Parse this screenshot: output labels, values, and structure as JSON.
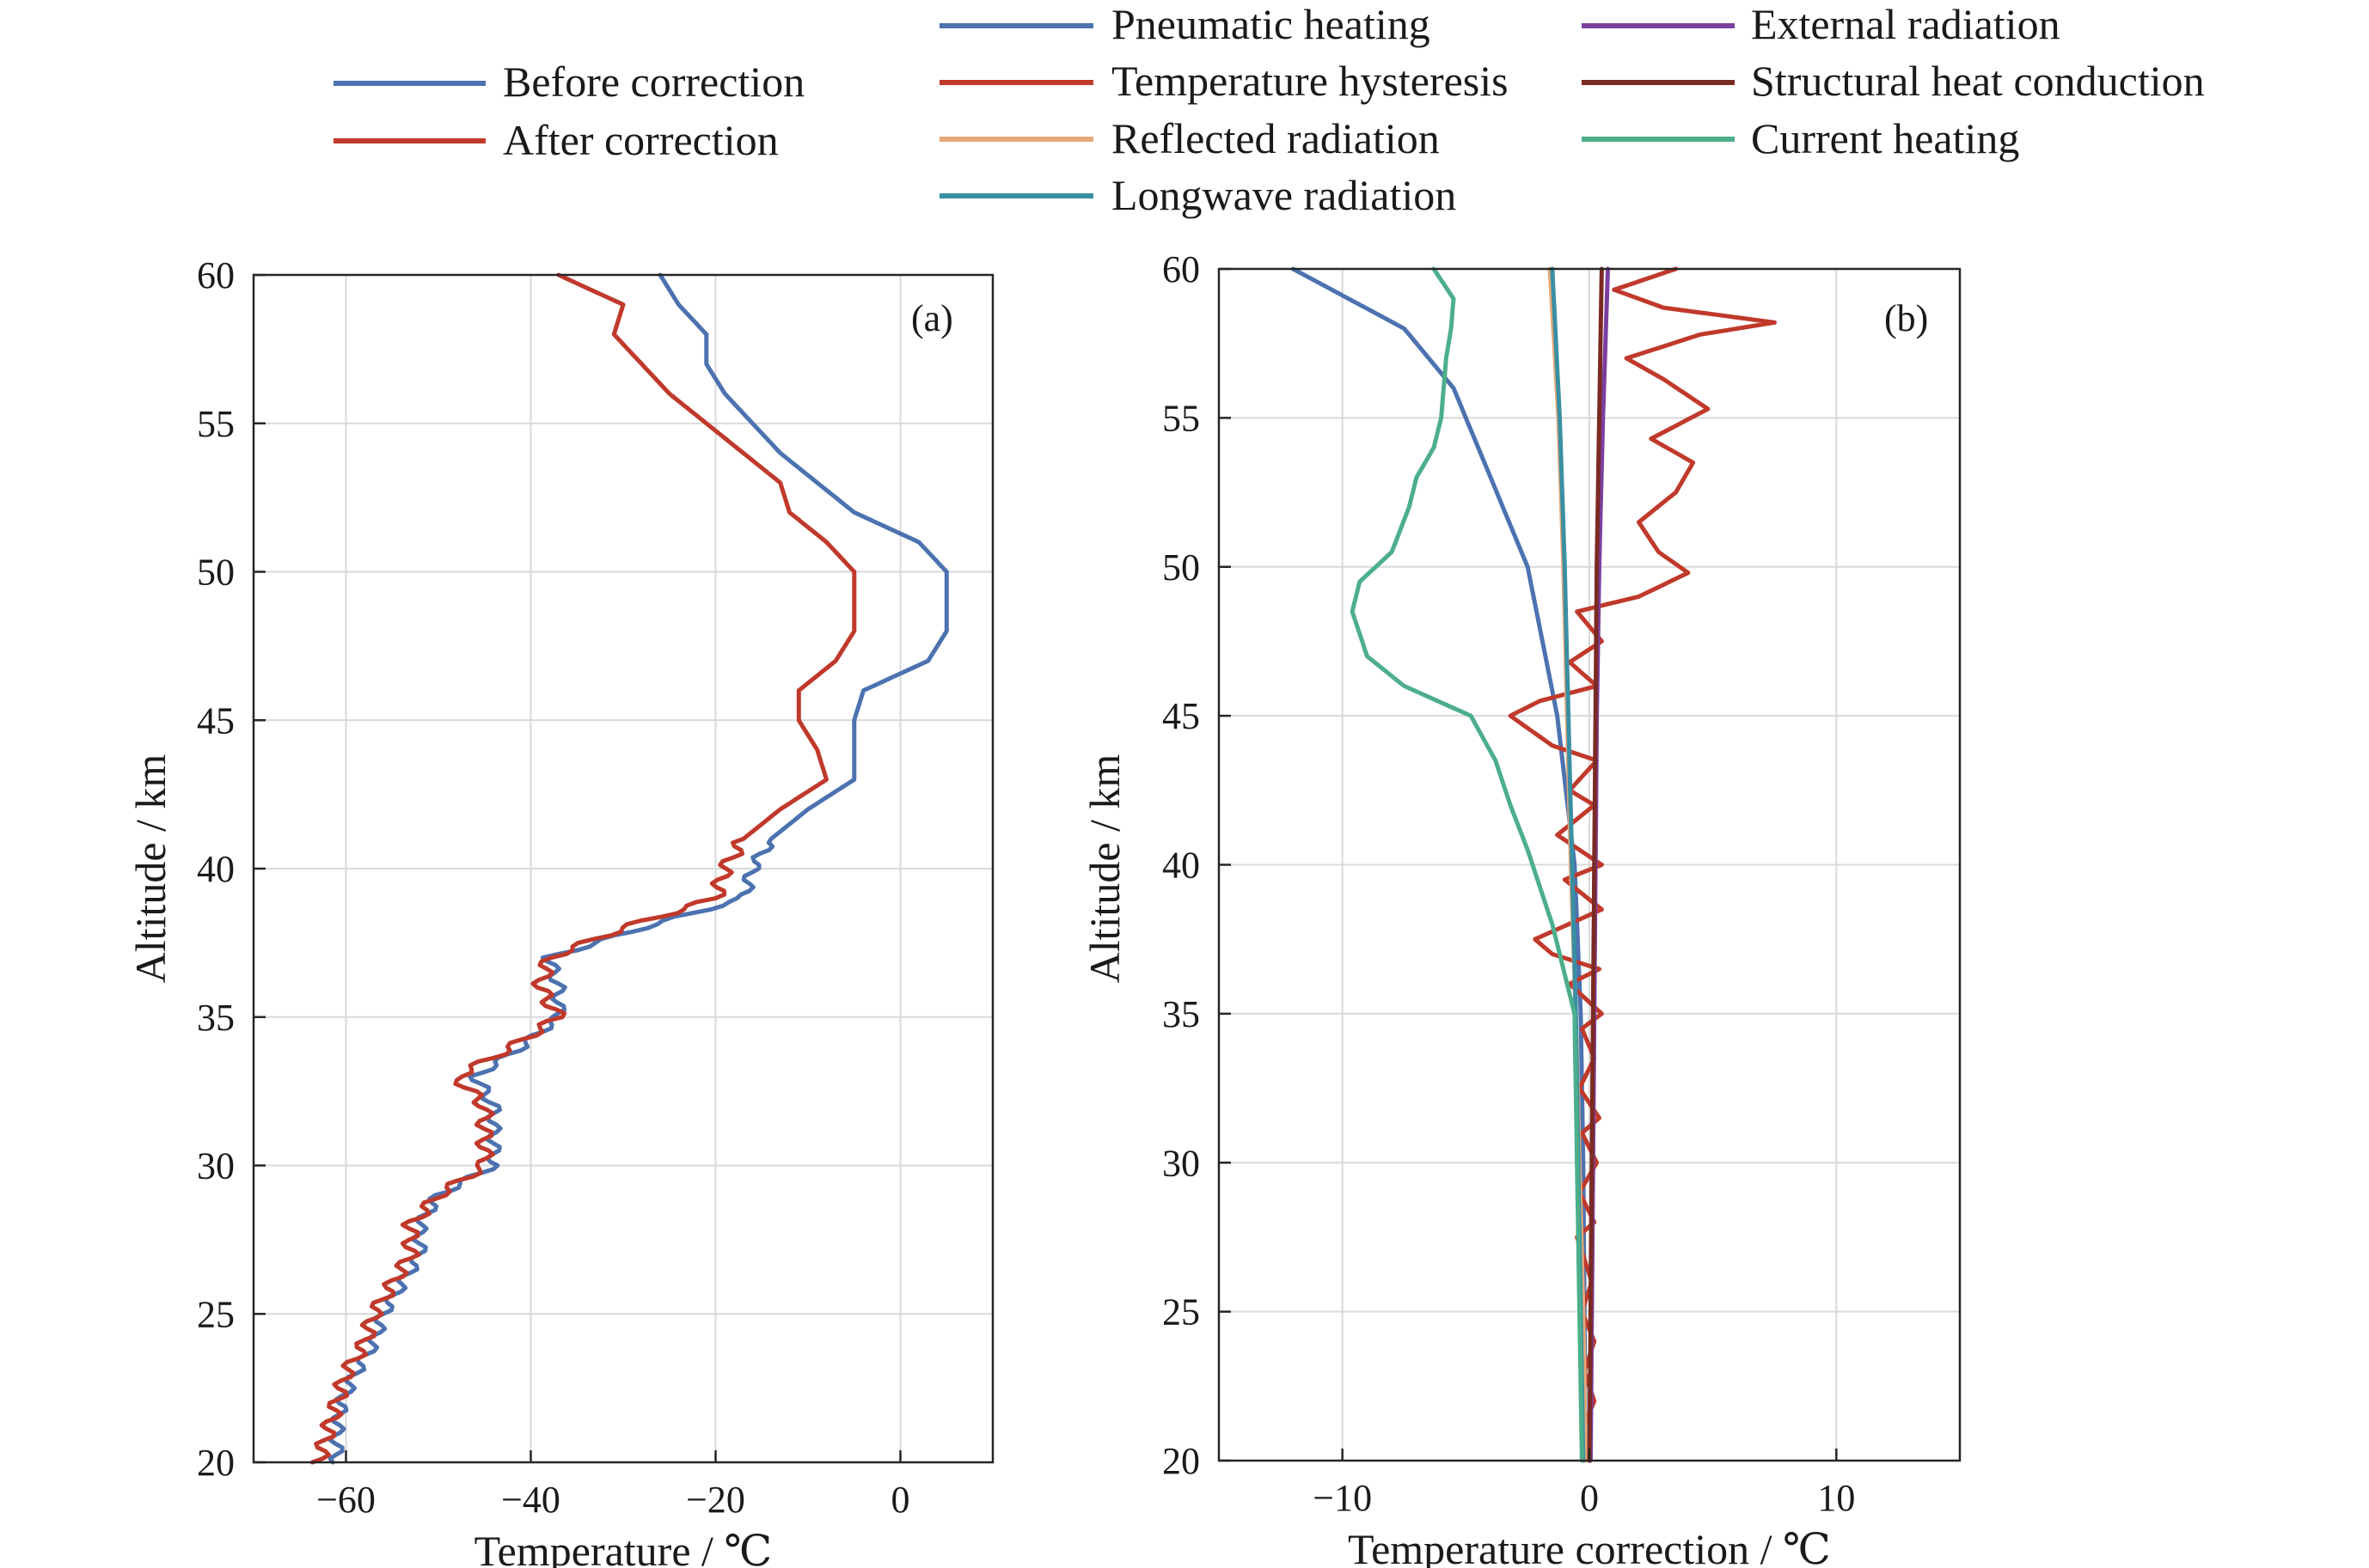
{
  "chart_data": [
    {
      "type": "line",
      "panel_label": "(a)",
      "xlabel": "Temperature / ℃",
      "ylabel": "Altitude / km",
      "xlim": [
        -70,
        10
      ],
      "ylim": [
        20,
        60
      ],
      "xticks": [
        -60,
        -40,
        -20,
        0
      ],
      "xtick_labels": [
        "−60",
        "−40",
        "−20",
        "0"
      ],
      "yticks": [
        20,
        25,
        30,
        35,
        40,
        45,
        50,
        55,
        60
      ],
      "ytick_labels": [
        "20",
        "25",
        "30",
        "35",
        "40",
        "45",
        "50",
        "55",
        "60"
      ],
      "grid": true,
      "legend_position": "above, left",
      "series": [
        {
          "name": "Before correction",
          "color": "#4c72b0",
          "points": [
            [
              -61,
              20
            ],
            [
              -61,
              21
            ],
            [
              -60.5,
              22
            ],
            [
              -59,
              23
            ],
            [
              -57,
              24
            ],
            [
              -56,
              25
            ],
            [
              -54,
              26
            ],
            [
              -52,
              27
            ],
            [
              -52,
              28
            ],
            [
              -50,
              29
            ],
            [
              -44,
              30
            ],
            [
              -44,
              31
            ],
            [
              -44,
              32
            ],
            [
              -46,
              33
            ],
            [
              -41,
              34
            ],
            [
              -37,
              35
            ],
            [
              -37,
              36
            ],
            [
              -38,
              37
            ],
            [
              -28,
              38
            ],
            [
              -17,
              39
            ],
            [
              -16,
              40
            ],
            [
              -14,
              41
            ],
            [
              -10,
              42
            ],
            [
              -5,
              43
            ],
            [
              -5,
              44
            ],
            [
              -5,
              45
            ],
            [
              -4,
              46
            ],
            [
              3,
              47
            ],
            [
              5,
              48
            ],
            [
              5,
              49
            ],
            [
              5,
              50
            ],
            [
              2,
              51
            ],
            [
              -5,
              52
            ],
            [
              -9,
              53
            ],
            [
              -13,
              54
            ],
            [
              -16,
              55
            ],
            [
              -19,
              56
            ],
            [
              -21,
              57
            ],
            [
              -21,
              58
            ],
            [
              -24,
              59
            ],
            [
              -26,
              60
            ]
          ]
        },
        {
          "name": "After correction",
          "color": "#c0392b",
          "points": [
            [
              -63,
              20
            ],
            [
              -62,
              21
            ],
            [
              -61,
              22
            ],
            [
              -60,
              23
            ],
            [
              -58,
              24
            ],
            [
              -57,
              25
            ],
            [
              -55,
              26
            ],
            [
              -53,
              27
            ],
            [
              -53,
              28
            ],
            [
              -50,
              29
            ],
            [
              -45,
              30
            ],
            [
              -45,
              31
            ],
            [
              -45,
              32
            ],
            [
              -48,
              33
            ],
            [
              -42,
              34
            ],
            [
              -37,
              35
            ],
            [
              -39,
              36
            ],
            [
              -38,
              37
            ],
            [
              -30,
              38
            ],
            [
              -20,
              39
            ],
            [
              -19,
              40
            ],
            [
              -17,
              41
            ],
            [
              -13,
              42
            ],
            [
              -8,
              43
            ],
            [
              -9,
              44
            ],
            [
              -11,
              45
            ],
            [
              -11,
              46
            ],
            [
              -7,
              47
            ],
            [
              -5,
              48
            ],
            [
              -5,
              49
            ],
            [
              -5,
              50
            ],
            [
              -8,
              51
            ],
            [
              -12,
              52
            ],
            [
              -13,
              53
            ],
            [
              -17,
              54
            ],
            [
              -21,
              55
            ],
            [
              -25,
              56
            ],
            [
              -28,
              57
            ],
            [
              -31,
              58
            ],
            [
              -30,
              59
            ],
            [
              -37,
              60
            ]
          ]
        }
      ]
    },
    {
      "type": "line",
      "panel_label": "(b)",
      "xlabel": "Temperature correction / ℃",
      "ylabel": "Altitude / km",
      "xlim": [
        -15,
        15
      ],
      "ylim": [
        20,
        60
      ],
      "xticks": [
        -10,
        0,
        10
      ],
      "xtick_labels": [
        "−10",
        "0",
        "10"
      ],
      "yticks": [
        20,
        25,
        30,
        35,
        40,
        45,
        50,
        55,
        60
      ],
      "ytick_labels": [
        "20",
        "25",
        "30",
        "35",
        "40",
        "45",
        "50",
        "55",
        "60"
      ],
      "grid": true,
      "legend_position": "above, two columns",
      "series": [
        {
          "name": "Pneumatic heating",
          "color": "#4c72b0",
          "points": [
            [
              -0.15,
              20
            ],
            [
              -0.2,
              25
            ],
            [
              -0.25,
              30
            ],
            [
              -0.35,
              35
            ],
            [
              -0.6,
              40
            ],
            [
              -1.3,
              45
            ],
            [
              -2.5,
              50
            ],
            [
              -4.0,
              53
            ],
            [
              -5.5,
              56
            ],
            [
              -7.5,
              58
            ],
            [
              -12,
              60
            ]
          ]
        },
        {
          "name": "Temperature hysteresis",
          "color": "#c0392b",
          "points": [
            [
              0,
              20
            ],
            [
              -0.3,
              21
            ],
            [
              0.2,
              22
            ],
            [
              -0.2,
              23
            ],
            [
              0.2,
              24
            ],
            [
              -0.3,
              25
            ],
            [
              0.1,
              26
            ],
            [
              -0.5,
              27.5
            ],
            [
              0.2,
              28
            ],
            [
              -0.4,
              29
            ],
            [
              0.3,
              30
            ],
            [
              -0.3,
              31
            ],
            [
              0.4,
              31.5
            ],
            [
              -0.4,
              32.5
            ],
            [
              0.2,
              33.5
            ],
            [
              -0.3,
              34.5
            ],
            [
              0.5,
              35
            ],
            [
              -0.8,
              36
            ],
            [
              0.4,
              36.5
            ],
            [
              -1.5,
              37
            ],
            [
              -2.2,
              37.5
            ],
            [
              0.5,
              38.5
            ],
            [
              -1.0,
              39.5
            ],
            [
              0.5,
              40
            ],
            [
              -1.3,
              41
            ],
            [
              0.2,
              42
            ],
            [
              -0.8,
              42.5
            ],
            [
              0.3,
              43.5
            ],
            [
              -1.5,
              44
            ],
            [
              -3.2,
              45
            ],
            [
              -2.0,
              45.5
            ],
            [
              0.3,
              46
            ],
            [
              -0.8,
              46.8
            ],
            [
              0.5,
              47.5
            ],
            [
              -0.5,
              48.5
            ],
            [
              2.0,
              49
            ],
            [
              4.0,
              49.8
            ],
            [
              2.8,
              50.5
            ],
            [
              2.0,
              51.5
            ],
            [
              3.5,
              52.5
            ],
            [
              4.2,
              53.5
            ],
            [
              2.5,
              54.3
            ],
            [
              4.8,
              55.3
            ],
            [
              3.0,
              56.3
            ],
            [
              1.5,
              57
            ],
            [
              4.5,
              57.8
            ],
            [
              7.5,
              58.2
            ],
            [
              3.0,
              58.7
            ],
            [
              1.0,
              59.3
            ],
            [
              3.5,
              60
            ]
          ]
        },
        {
          "name": "Reflected radiation",
          "color": "#e5a878",
          "points": [
            [
              -0.15,
              20
            ],
            [
              -0.25,
              25
            ],
            [
              -0.4,
              30
            ],
            [
              -0.55,
              35
            ],
            [
              -0.75,
              40
            ],
            [
              -0.9,
              45
            ],
            [
              -1.05,
              50
            ],
            [
              -1.25,
              55
            ],
            [
              -1.6,
              60
            ]
          ]
        },
        {
          "name": "Longwave radiation",
          "color": "#3a8fa3",
          "points": [
            [
              -0.25,
              20
            ],
            [
              -0.35,
              25
            ],
            [
              -0.45,
              30
            ],
            [
              -0.55,
              35
            ],
            [
              -0.7,
              40
            ],
            [
              -0.85,
              45
            ],
            [
              -1.0,
              50
            ],
            [
              -1.2,
              55
            ],
            [
              -1.5,
              60
            ]
          ]
        },
        {
          "name": "External radiation",
          "color": "#7b3fa0",
          "points": [
            [
              0.05,
              20
            ],
            [
              0.1,
              25
            ],
            [
              0.15,
              30
            ],
            [
              0.2,
              35
            ],
            [
              0.25,
              40
            ],
            [
              0.3,
              45
            ],
            [
              0.4,
              50
            ],
            [
              0.55,
              55
            ],
            [
              0.75,
              60
            ]
          ]
        },
        {
          "name": "Structural heat conduction",
          "color": "#7a2a22",
          "points": [
            [
              0.0,
              20
            ],
            [
              0.05,
              25
            ],
            [
              0.1,
              30
            ],
            [
              0.15,
              35
            ],
            [
              0.2,
              40
            ],
            [
              0.25,
              45
            ],
            [
              0.3,
              50
            ],
            [
              0.4,
              55
            ],
            [
              0.5,
              60
            ]
          ]
        },
        {
          "name": "Current heating",
          "color": "#4caf8a",
          "points": [
            [
              -0.3,
              20
            ],
            [
              -0.4,
              25
            ],
            [
              -0.5,
              30
            ],
            [
              -0.6,
              35
            ],
            [
              -1.5,
              38
            ],
            [
              -2.5,
              40.5
            ],
            [
              -3.2,
              42
            ],
            [
              -3.8,
              43.5
            ],
            [
              -4.8,
              45
            ],
            [
              -7.5,
              46
            ],
            [
              -9,
              47
            ],
            [
              -9.6,
              48.5
            ],
            [
              -9.3,
              49.5
            ],
            [
              -8,
              50.5
            ],
            [
              -7.3,
              52
            ],
            [
              -7,
              53
            ],
            [
              -6.3,
              54
            ],
            [
              -6.0,
              55
            ],
            [
              -5.9,
              56
            ],
            [
              -5.8,
              57
            ],
            [
              -5.6,
              58
            ],
            [
              -5.5,
              59
            ],
            [
              -6.3,
              60
            ]
          ]
        }
      ]
    }
  ]
}
